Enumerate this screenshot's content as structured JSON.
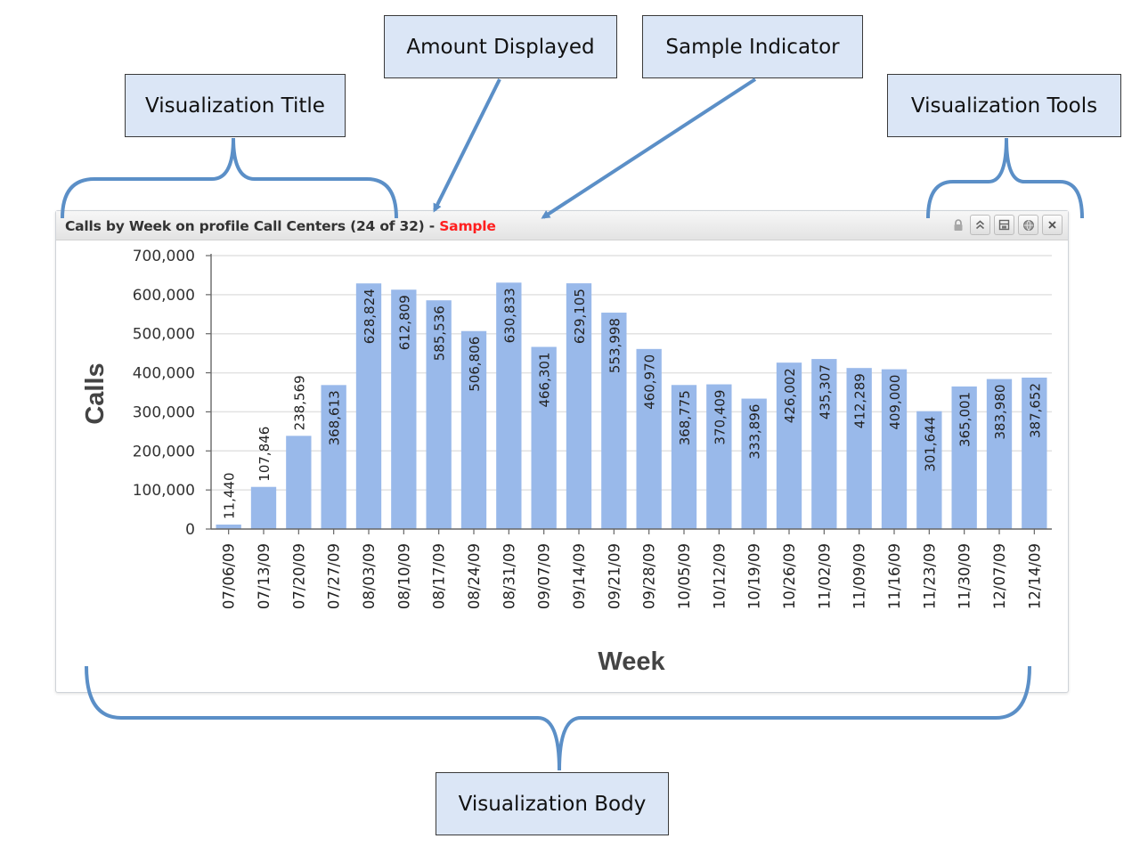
{
  "callouts": {
    "title": "Visualization Title",
    "amount": "Amount Displayed",
    "sample": "Sample Indicator",
    "tools": "Visualization Tools",
    "body": "Visualization Body"
  },
  "visualization": {
    "title": "Calls by Week on profile Call Centers",
    "amount": "(24 of 32)",
    "separator": "-",
    "sample_label": "Sample",
    "tools": [
      "lock-icon",
      "collapse-icon",
      "save-icon",
      "globe-icon",
      "close-icon"
    ]
  },
  "colors": {
    "bar": "#99b9ea",
    "sample": "#ff1f1f",
    "callout_fill": "#dbe6f6",
    "connector": "#5b8fc7"
  },
  "chart_data": {
    "type": "bar",
    "title": "",
    "xlabel": "Week",
    "ylabel": "Calls",
    "ylim": [
      0,
      700000
    ],
    "yticks": [
      "0",
      "100,000",
      "200,000",
      "300,000",
      "400,000",
      "500,000",
      "600,000",
      "700,000"
    ],
    "grid": true,
    "categories": [
      "07/06/09",
      "07/13/09",
      "07/20/09",
      "07/27/09",
      "08/03/09",
      "08/10/09",
      "08/17/09",
      "08/24/09",
      "08/31/09",
      "09/07/09",
      "09/14/09",
      "09/21/09",
      "09/28/09",
      "10/05/09",
      "10/12/09",
      "10/19/09",
      "10/26/09",
      "11/02/09",
      "11/09/09",
      "11/16/09",
      "11/23/09",
      "11/30/09",
      "12/07/09",
      "12/14/09"
    ],
    "values": [
      11440,
      107846,
      238569,
      368613,
      628824,
      612809,
      585536,
      506806,
      630833,
      466301,
      629105,
      553998,
      460970,
      368775,
      370409,
      333896,
      426002,
      435307,
      412289,
      409000,
      301644,
      365001,
      383980,
      387652
    ],
    "value_labels": [
      "11,440",
      "107,846",
      "238,569",
      "368,613",
      "628,824",
      "612,809",
      "585,536",
      "506,806",
      "630,833",
      "466,301",
      "629,105",
      "553,998",
      "460,970",
      "368,775",
      "370,409",
      "333,896",
      "426,002",
      "435,307",
      "412,289",
      "409,000",
      "301,644",
      "365,001",
      "383,980",
      "387,652"
    ]
  }
}
